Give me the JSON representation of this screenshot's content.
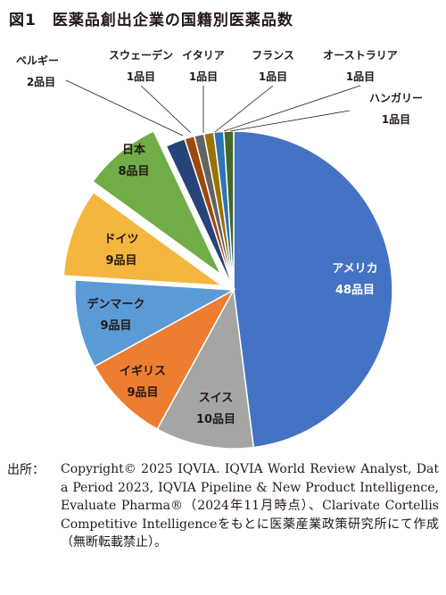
{
  "title": "図1　医薬品創出企業の国籍別医薬品数",
  "chart_data": {
    "type": "pie",
    "unit": "品目",
    "slices": [
      {
        "label": "アメリカ",
        "value": 48,
        "value_label": "48品目",
        "color": "#4472C4"
      },
      {
        "label": "スイス",
        "value": 10,
        "value_label": "10品目",
        "color": "#A5A5A5"
      },
      {
        "label": "イギリス",
        "value": 9,
        "value_label": "9品目",
        "color": "#ED7D31"
      },
      {
        "label": "デンマーク",
        "value": 9,
        "value_label": "9品目",
        "color": "#5B9BD5"
      },
      {
        "label": "ドイツ",
        "value": 9,
        "value_label": "9品目",
        "color": "#F4B63F"
      },
      {
        "label": "日本",
        "value": 8,
        "value_label": "8品目",
        "color": "#70AD47"
      },
      {
        "label": "ベルギー",
        "value": 2,
        "value_label": "2品目",
        "color": "#264478"
      },
      {
        "label": "スウェーデン",
        "value": 1,
        "value_label": "1品目",
        "color": "#9E480E"
      },
      {
        "label": "イタリア",
        "value": 1,
        "value_label": "1品目",
        "color": "#636363"
      },
      {
        "label": "フランス",
        "value": 1,
        "value_label": "1品目",
        "color": "#997300"
      },
      {
        "label": "オーストラリア",
        "value": 1,
        "value_label": "1品目",
        "color": "#2E75B6"
      },
      {
        "label": "ハンガリー",
        "value": 1,
        "value_label": "1品目",
        "color": "#43682B"
      }
    ]
  },
  "source": {
    "label": "出所：",
    "text": "Copyright© 2025 IQVIA. IQVIA World Review Analyst, Data Period 2023, IQVIA Pipeline & New Product Intelligence, Evaluate Pharma®（2024年11月時点）、Clarivate Cortellis Competitive Intelligenceをもとに医薬産業政策研究所にて作成（無断転載禁止）。"
  }
}
